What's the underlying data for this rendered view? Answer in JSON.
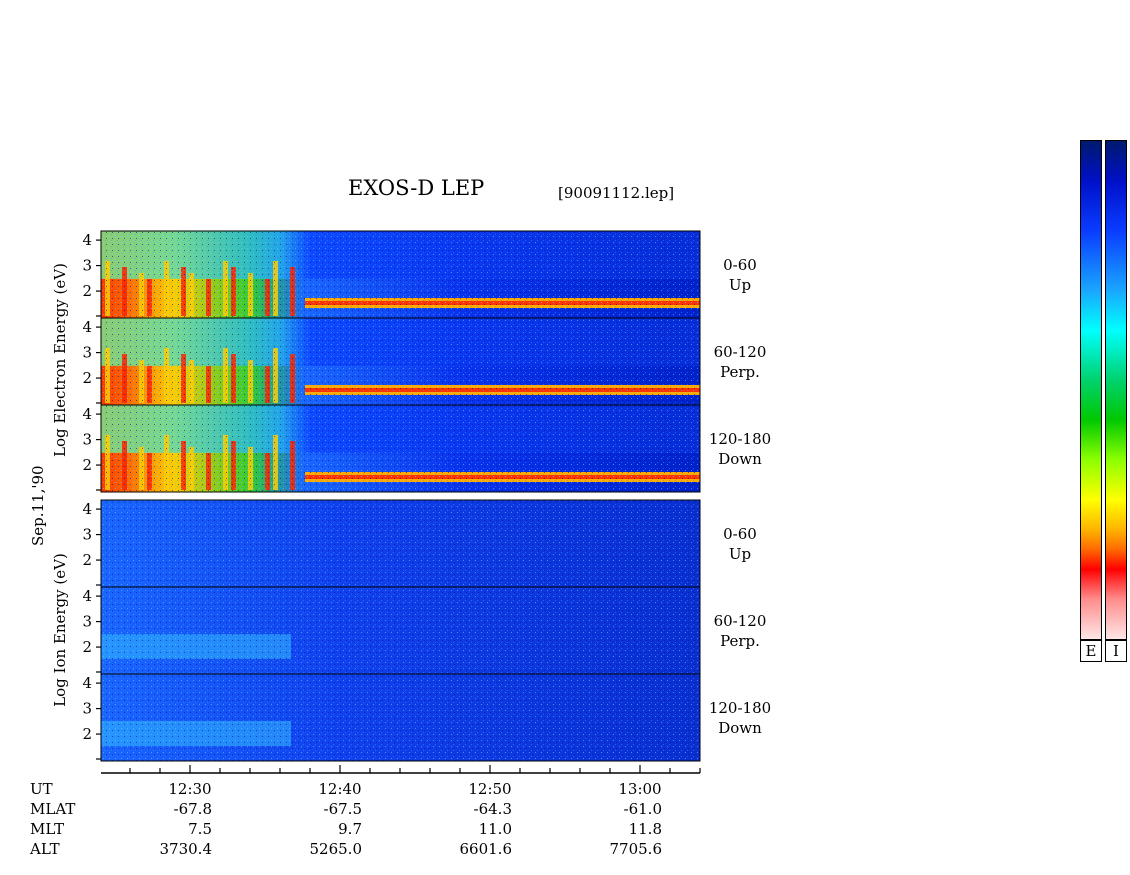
{
  "title": "EXOS-D LEP",
  "file": "[90091112.lep]",
  "date_label": "Sep.11,'90",
  "electron_axis_label": "Log  Electron  Energy (eV)",
  "ion_axis_label": "Log  Ion  Energy (eV)",
  "panel_labels": [
    {
      "angle": "0-60",
      "dir": "Up"
    },
    {
      "angle": "60-120",
      "dir": "Perp."
    },
    {
      "angle": "120-180",
      "dir": "Down"
    },
    {
      "angle": "0-60",
      "dir": "Up"
    },
    {
      "angle": "60-120",
      "dir": "Perp."
    },
    {
      "angle": "120-180",
      "dir": "Down"
    }
  ],
  "colorbar_labels": [
    "E",
    "I"
  ],
  "orbit_table": {
    "row_labels": [
      "UT",
      "MLAT",
      "MLT",
      "ALT"
    ],
    "columns": [
      {
        "UT": "12:30",
        "MLAT": "-67.8",
        "MLT": "7.5",
        "ALT": "3730.4"
      },
      {
        "UT": "12:40",
        "MLAT": "-67.5",
        "MLT": "9.7",
        "ALT": "5265.0"
      },
      {
        "UT": "12:50",
        "MLAT": "-64.3",
        "MLT": "11.0",
        "ALT": "6601.6"
      },
      {
        "UT": "13:00",
        "MLAT": "-61.0",
        "MLT": "11.8",
        "ALT": "7705.6"
      }
    ]
  },
  "chart_data": {
    "type": "heatmap",
    "x_ticks": [
      "12:30",
      "12:40",
      "12:50",
      "13:00"
    ],
    "y_ticks": [
      "2",
      "3",
      "4"
    ],
    "panels": [
      {
        "species": "electron",
        "pitch_angle": "0-60 Up"
      },
      {
        "species": "electron",
        "pitch_angle": "60-120 Perp."
      },
      {
        "species": "electron",
        "pitch_angle": "120-180 Down"
      },
      {
        "species": "ion",
        "pitch_angle": "0-60 Up"
      },
      {
        "species": "ion",
        "pitch_angle": "60-120 Perp."
      },
      {
        "species": "ion",
        "pitch_angle": "120-180 Down"
      }
    ]
  }
}
